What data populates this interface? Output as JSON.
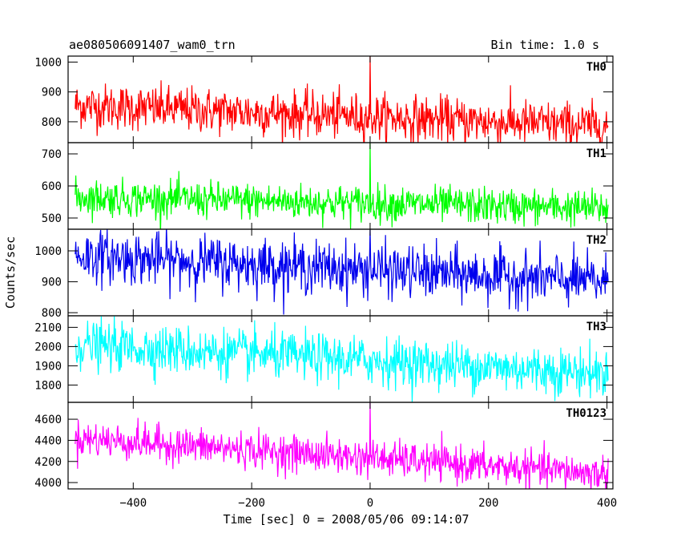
{
  "header": {
    "source_name": "ae080506091407_wam0_trn",
    "bin_time": "Bin time: 1.0 s"
  },
  "chart_data": {
    "type": "line",
    "title": "ae080506091407_wam0_trn",
    "subtitle": "Bin time: 1.0 s",
    "xlabel": "Time [sec] 0 = 2008/05/06 09:14:07",
    "ylabel": "Counts/sec",
    "xlim": [
      -510,
      410
    ],
    "x_ticks": [
      -400,
      -200,
      0,
      200,
      400
    ],
    "x_tick_labels": [
      "−400",
      "−200",
      "0",
      "200",
      "400"
    ],
    "x_start": -498,
    "x_end": 402,
    "bin_time": 1.0,
    "grid": false,
    "legend": "none",
    "panels": [
      {
        "name": "TH0",
        "color": "#ff0000",
        "ylim": [
          730,
          1020
        ],
        "yticks": [
          800,
          900,
          1000
        ],
        "trend": {
          "start": 855,
          "end": 785
        },
        "noise_sigma": 38,
        "burst": {
          "x": 0,
          "peak": 1020
        }
      },
      {
        "name": "TH1",
        "color": "#00ff00",
        "ylim": [
          465,
          735
        ],
        "yticks": [
          500,
          600,
          700
        ],
        "trend": {
          "start": 565,
          "end": 530
        },
        "noise_sigma": 28,
        "burst": {
          "x": 0,
          "peak": 735
        }
      },
      {
        "name": "TH2",
        "color": "#0000ee",
        "ylim": [
          790,
          1070
        ],
        "yticks": [
          800,
          900,
          1000
        ],
        "trend": {
          "start": 985,
          "end": 900
        },
        "noise_sigma": 42,
        "burst": {
          "x": 0,
          "peak": 1070
        }
      },
      {
        "name": "TH3",
        "color": "#00ffff",
        "ylim": [
          1710,
          2160
        ],
        "yticks": [
          1800,
          1900,
          2000,
          2100
        ],
        "trend": {
          "start": 2010,
          "end": 1860
        },
        "noise_sigma": 62,
        "burst": null
      },
      {
        "name": "TH0123",
        "color": "#ff00ff",
        "ylim": [
          3940,
          4760
        ],
        "yticks": [
          4000,
          4200,
          4400,
          4600
        ],
        "trend": {
          "start": 4420,
          "end": 4080
        },
        "noise_sigma": 85,
        "burst": {
          "x": 0,
          "peak": 4760
        }
      }
    ]
  }
}
